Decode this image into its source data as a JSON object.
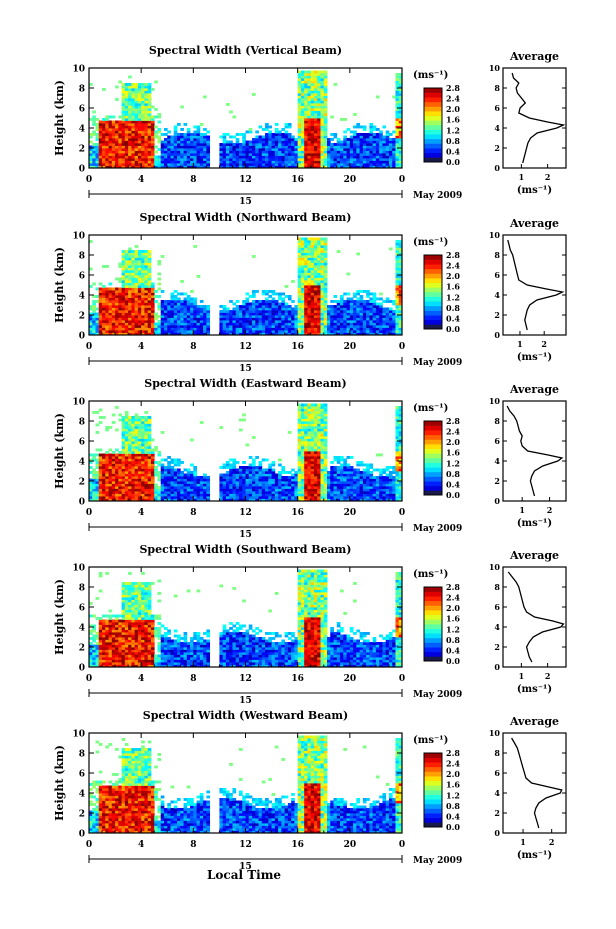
{
  "figure": {
    "xlabel": "Local Time",
    "date_marker": "15",
    "month_label": "May 2009",
    "cbar_units": "(ms⁻¹)",
    "profile_title": "Average",
    "profile_xlabel": "(ms⁻¹)"
  },
  "chart_data": [
    {
      "type": "heatmap",
      "title": "Spectral Width (Vertical Beam)",
      "ylabel": "Height (km)",
      "xlim": [
        0,
        24
      ],
      "ylim": [
        0,
        10
      ],
      "xticks": [
        "0",
        "4",
        "8",
        "12",
        "16",
        "20",
        "0"
      ],
      "yticks": [
        "0",
        "2",
        "4",
        "6",
        "8",
        "10"
      ],
      "colorbar": {
        "ticks": [
          "0.0",
          "0.4",
          "0.8",
          "1.2",
          "1.6",
          "2.0",
          "2.4",
          "2.8"
        ],
        "range": [
          0,
          2.8
        ]
      },
      "profile": {
        "title": "Average",
        "xlim": [
          0.3,
          2.7
        ],
        "xticks": [
          "1",
          "2"
        ],
        "yticks": [
          "0",
          "2",
          "4",
          "6",
          "8",
          "10"
        ],
        "height_km": [
          0.5,
          1.0,
          1.5,
          2.0,
          2.5,
          3.0,
          3.5,
          4.0,
          4.3,
          4.6,
          5.0,
          5.5,
          6.0,
          6.5,
          7.0,
          7.5,
          8.0,
          8.5,
          9.0,
          9.5
        ],
        "width_ms": [
          1.05,
          1.1,
          1.15,
          1.2,
          1.25,
          1.35,
          1.6,
          2.35,
          2.6,
          2.0,
          1.3,
          0.9,
          0.95,
          1.15,
          1.0,
          0.85,
          0.8,
          0.9,
          0.7,
          0.65
        ]
      }
    },
    {
      "type": "heatmap",
      "title": "Spectral Width (Northward Beam)",
      "ylabel": "Height (km)",
      "xlim": [
        0,
        24
      ],
      "ylim": [
        0,
        10
      ],
      "xticks": [
        "0",
        "4",
        "8",
        "12",
        "16",
        "20",
        "0"
      ],
      "yticks": [
        "0",
        "2",
        "4",
        "6",
        "8",
        "10"
      ],
      "colorbar": {
        "ticks": [
          "0.0",
          "0.4",
          "0.8",
          "1.2",
          "1.6",
          "2.0",
          "2.4",
          "2.8"
        ],
        "range": [
          0,
          2.8
        ]
      },
      "profile": {
        "title": "Average",
        "xlim": [
          0.3,
          2.9
        ],
        "xticks": [
          "1",
          "2"
        ],
        "yticks": [
          "0",
          "2",
          "4",
          "6",
          "8",
          "10"
        ],
        "height_km": [
          0.5,
          1.0,
          1.5,
          2.0,
          2.5,
          3.0,
          3.5,
          4.0,
          4.3,
          4.6,
          5.0,
          5.5,
          6.0,
          6.5,
          7.0,
          7.5,
          8.0,
          8.5,
          9.0,
          9.5
        ],
        "width_ms": [
          1.3,
          1.25,
          1.2,
          1.25,
          1.3,
          1.4,
          1.7,
          2.5,
          2.75,
          2.1,
          1.3,
          0.95,
          0.9,
          0.85,
          0.8,
          0.75,
          0.7,
          0.6,
          0.55,
          0.5
        ]
      }
    },
    {
      "type": "heatmap",
      "title": "Spectral Width (Eastward Beam)",
      "ylabel": "Height (km)",
      "xlim": [
        0,
        24
      ],
      "ylim": [
        0,
        10
      ],
      "xticks": [
        "0",
        "4",
        "8",
        "12",
        "16",
        "20",
        "0"
      ],
      "yticks": [
        "0",
        "2",
        "4",
        "6",
        "8",
        "10"
      ],
      "colorbar": {
        "ticks": [
          "0.0",
          "0.4",
          "0.8",
          "1.2",
          "1.6",
          "2.0",
          "2.4",
          "2.8"
        ],
        "range": [
          0,
          2.8
        ]
      },
      "profile": {
        "title": "Average",
        "xlim": [
          0.3,
          2.6
        ],
        "xticks": [
          "1",
          "2"
        ],
        "yticks": [
          "0",
          "2",
          "4",
          "6",
          "8",
          "10"
        ],
        "height_km": [
          0.5,
          1.0,
          1.5,
          2.0,
          2.5,
          3.0,
          3.5,
          4.0,
          4.3,
          4.6,
          5.0,
          5.5,
          6.0,
          6.5,
          7.0,
          7.5,
          8.0,
          8.5,
          9.0,
          9.5
        ],
        "width_ms": [
          1.45,
          1.4,
          1.35,
          1.3,
          1.35,
          1.45,
          1.75,
          2.3,
          2.45,
          1.95,
          1.2,
          1.0,
          0.95,
          1.0,
          0.9,
          0.85,
          0.8,
          0.7,
          0.55,
          0.45
        ]
      }
    },
    {
      "type": "heatmap",
      "title": "Spectral Width (Southward Beam)",
      "ylabel": "Height (km)",
      "xlim": [
        0,
        24
      ],
      "ylim": [
        0,
        10
      ],
      "xticks": [
        "0",
        "4",
        "8",
        "12",
        "16",
        "20",
        "0"
      ],
      "yticks": [
        "0",
        "2",
        "4",
        "6",
        "8",
        "10"
      ],
      "colorbar": {
        "ticks": [
          "0.0",
          "0.4",
          "0.8",
          "1.2",
          "1.6",
          "2.0",
          "2.4",
          "2.8"
        ],
        "range": [
          0,
          2.8
        ]
      },
      "profile": {
        "title": "Average",
        "xlim": [
          0.3,
          2.7
        ],
        "xticks": [
          "1",
          "2"
        ],
        "yticks": [
          "0",
          "2",
          "4",
          "6",
          "8",
          "10"
        ],
        "height_km": [
          0.5,
          1.0,
          1.5,
          2.0,
          2.5,
          3.0,
          3.5,
          4.0,
          4.3,
          4.6,
          5.0,
          5.5,
          6.0,
          6.5,
          7.0,
          7.5,
          8.0,
          8.5,
          9.0,
          9.5
        ],
        "width_ms": [
          1.4,
          1.3,
          1.25,
          1.2,
          1.3,
          1.45,
          1.8,
          2.5,
          2.6,
          2.2,
          1.5,
          1.2,
          1.1,
          1.05,
          1.0,
          0.95,
          0.9,
          0.8,
          0.65,
          0.5
        ]
      }
    },
    {
      "type": "heatmap",
      "title": "Spectral Width (Westward Beam)",
      "ylabel": "Height (km)",
      "xlim": [
        0,
        24
      ],
      "ylim": [
        0,
        10
      ],
      "xticks": [
        "0",
        "4",
        "8",
        "12",
        "16",
        "20",
        "0"
      ],
      "yticks": [
        "0",
        "2",
        "4",
        "6",
        "8",
        "10"
      ],
      "colorbar": {
        "ticks": [
          "0.0",
          "0.4",
          "0.8",
          "1.2",
          "1.6",
          "2.0",
          "2.4",
          "2.8"
        ],
        "range": [
          0,
          2.8
        ]
      },
      "profile": {
        "title": "Average",
        "xlim": [
          0.3,
          2.5
        ],
        "xticks": [
          "1",
          "2"
        ],
        "yticks": [
          "0",
          "2",
          "4",
          "6",
          "8",
          "10"
        ],
        "height_km": [
          0.5,
          1.0,
          1.5,
          2.0,
          2.5,
          3.0,
          3.5,
          4.0,
          4.3,
          4.6,
          5.0,
          5.5,
          6.0,
          6.5,
          7.0,
          7.5,
          8.0,
          8.5,
          9.0,
          9.5
        ],
        "width_ms": [
          1.55,
          1.5,
          1.45,
          1.4,
          1.45,
          1.55,
          1.8,
          2.3,
          2.35,
          1.9,
          1.3,
          1.1,
          1.05,
          1.0,
          0.95,
          0.9,
          0.85,
          0.8,
          0.7,
          0.6
        ]
      }
    }
  ]
}
